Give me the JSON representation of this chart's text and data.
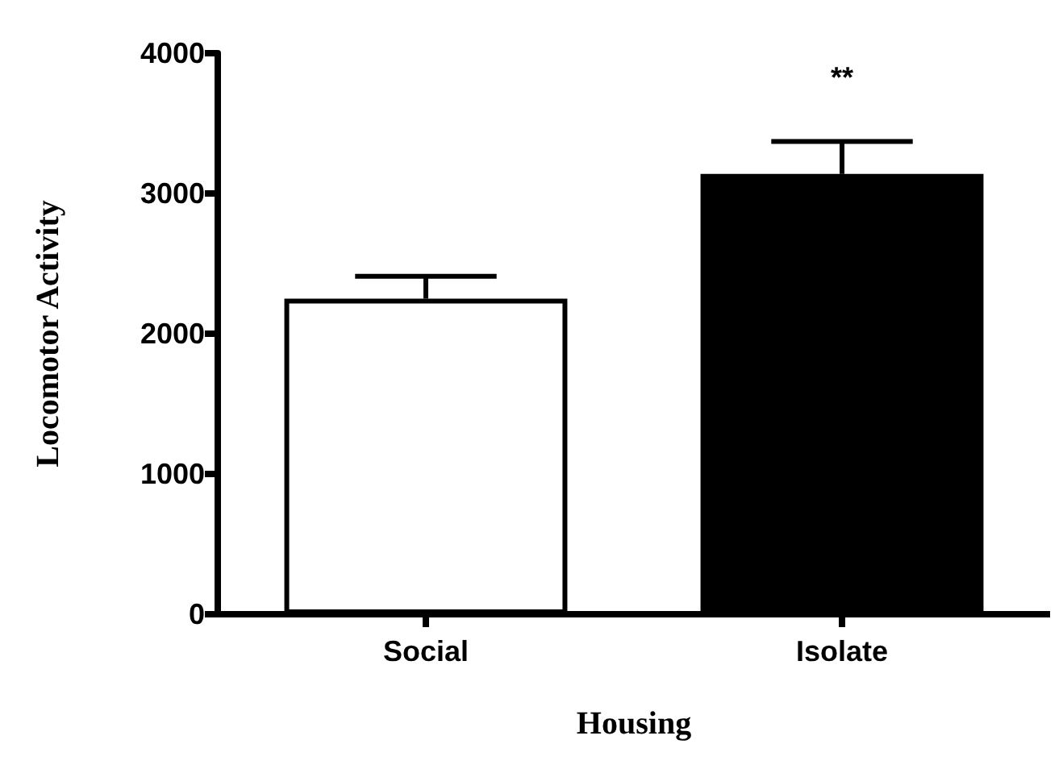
{
  "chart_data": {
    "type": "bar",
    "xlabel": "Housing",
    "ylabel": "Locomotor Activity",
    "categories": [
      "Social",
      "Isolate"
    ],
    "values": [
      2250,
      3140
    ],
    "colors": [
      "#ffffff",
      "#000000"
    ],
    "errors": [
      160,
      230
    ],
    "ylim": [
      0,
      4000
    ],
    "yticks": [
      0,
      1000,
      2000,
      3000,
      4000
    ],
    "annotations": [
      "**"
    ],
    "grid": false
  }
}
